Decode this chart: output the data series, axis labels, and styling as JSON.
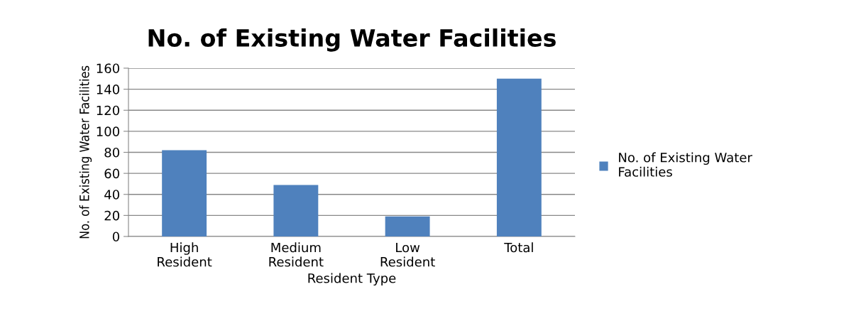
{
  "chart_data": {
    "type": "bar",
    "title": "No. of Existing Water Facilities",
    "xlabel": "Resident Type",
    "ylabel": "No. of Existing Water Facilities",
    "categories": [
      "High\nResident",
      "Medium\nResident",
      "Low\nResident",
      "Total"
    ],
    "series": [
      {
        "name": "No. of Existing Water\nFacilities",
        "color": "#4f81bd",
        "values": [
          82,
          49,
          19,
          150
        ]
      }
    ],
    "ylim": [
      0,
      160
    ],
    "yticks": [
      0,
      20,
      40,
      60,
      80,
      100,
      120,
      140,
      160
    ],
    "grid": "y",
    "legend": "right"
  }
}
